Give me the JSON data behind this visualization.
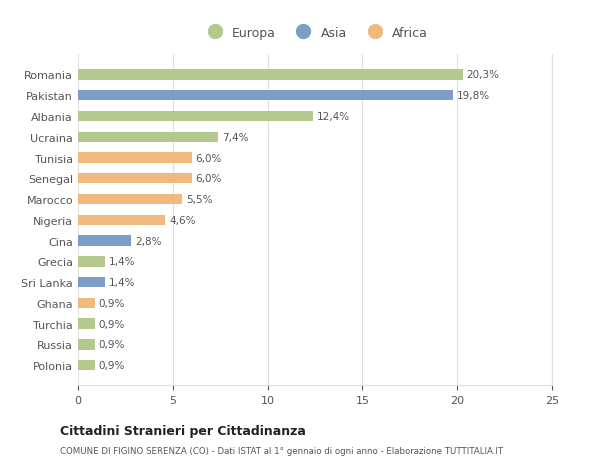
{
  "countries": [
    "Romania",
    "Pakistan",
    "Albania",
    "Ucraina",
    "Tunisia",
    "Senegal",
    "Marocco",
    "Nigeria",
    "Cina",
    "Grecia",
    "Sri Lanka",
    "Ghana",
    "Turchia",
    "Russia",
    "Polonia"
  ],
  "values": [
    20.3,
    19.8,
    12.4,
    7.4,
    6.0,
    6.0,
    5.5,
    4.6,
    2.8,
    1.4,
    1.4,
    0.9,
    0.9,
    0.9,
    0.9
  ],
  "labels": [
    "20,3%",
    "19,8%",
    "12,4%",
    "7,4%",
    "6,0%",
    "6,0%",
    "5,5%",
    "4,6%",
    "2,8%",
    "1,4%",
    "1,4%",
    "0,9%",
    "0,9%",
    "0,9%",
    "0,9%"
  ],
  "continents": [
    "Europa",
    "Asia",
    "Europa",
    "Europa",
    "Africa",
    "Africa",
    "Africa",
    "Africa",
    "Asia",
    "Europa",
    "Asia",
    "Africa",
    "Europa",
    "Europa",
    "Europa"
  ],
  "colors": {
    "Europa": "#b5c98e",
    "Asia": "#7b9dc7",
    "Africa": "#f0b97e"
  },
  "xlim": [
    0,
    25
  ],
  "xticks": [
    0,
    5,
    10,
    15,
    20,
    25
  ],
  "title": "Cittadini Stranieri per Cittadinanza",
  "subtitle": "COMUNE DI FIGINO SERENZA (CO) - Dati ISTAT al 1° gennaio di ogni anno - Elaborazione TUTTITALIA.IT",
  "background_color": "#ffffff",
  "plot_bg_color": "#ffffff",
  "grid_color": "#e0e0e0",
  "text_color": "#555555",
  "label_fontsize": 7.5,
  "ytick_fontsize": 8,
  "xtick_fontsize": 8,
  "bar_height": 0.5
}
